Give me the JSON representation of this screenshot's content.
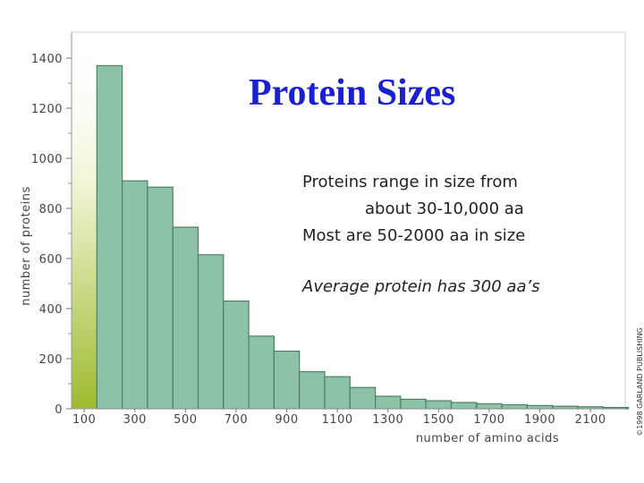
{
  "chart_data": {
    "type": "bar",
    "title": "Protein Sizes",
    "xlabel": "number of amino acids",
    "ylabel": "number of proteins",
    "bin_width": 100,
    "ylim": [
      0,
      1400
    ],
    "x_tick_labels": [
      "100",
      "300",
      "500",
      "700",
      "900",
      "1100",
      "1300",
      "1500",
      "1700",
      "1900",
      "2100"
    ],
    "y_tick_labels": [
      "0",
      "200",
      "400",
      "600",
      "800",
      "1000",
      "1200",
      "1400"
    ],
    "bin_starts": [
      50,
      150,
      250,
      350,
      450,
      550,
      650,
      750,
      850,
      950,
      1050,
      1150,
      1250,
      1350,
      1450,
      1550,
      1650,
      1750,
      1850,
      1950,
      2050,
      2150
    ],
    "values": [
      0,
      1370,
      910,
      885,
      725,
      615,
      430,
      290,
      230,
      148,
      128,
      85,
      50,
      38,
      32,
      25,
      20,
      16,
      13,
      10,
      8,
      5
    ],
    "first_bin_highlighted": true,
    "annotations": {
      "line1": "Proteins range in size from",
      "line2": "about 30-10,000 aa",
      "line3": "Most are 50-2000 aa in size",
      "line4": "Average protein has 300 aa’s"
    },
    "credit": "©1998 GARLAND PUBLISHING",
    "colors": {
      "bar_fill": "#8cc3a6",
      "bar_stroke": "#4f7f64",
      "highlight_top": "#f5f7dc",
      "highlight_bottom": "#9dbb2f",
      "title": "#1a1fd0"
    }
  }
}
